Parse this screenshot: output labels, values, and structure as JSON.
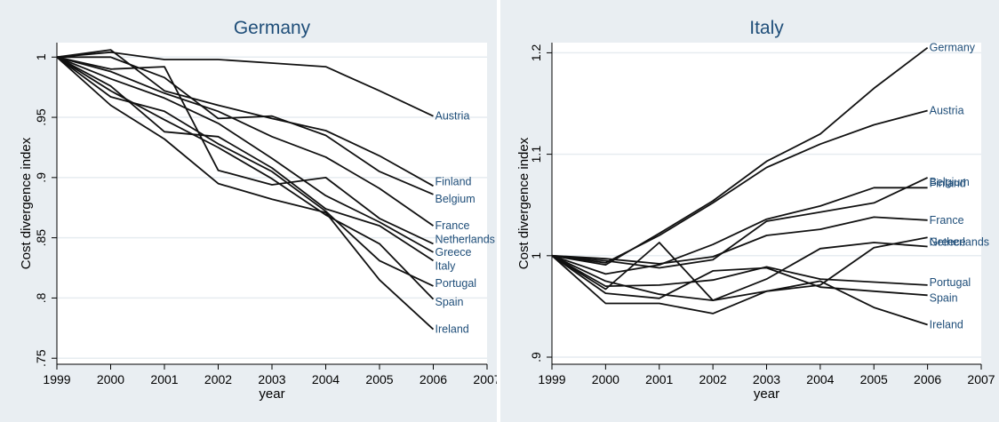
{
  "chart_data": [
    {
      "type": "line",
      "title": "Germany",
      "xlabel": "year",
      "ylabel": "Cost divergence index",
      "x": [
        1999,
        2000,
        2001,
        2002,
        2003,
        2004,
        2005,
        2006
      ],
      "xticks": [
        "1999",
        "2000",
        "2001",
        "2002",
        "2003",
        "2004",
        "2005",
        "2006",
        "2007"
      ],
      "xlim": [
        1999,
        2007
      ],
      "yticks": [
        ".75",
        ".8",
        ".85",
        ".9",
        ".95",
        "1"
      ],
      "ylim": [
        0.745,
        1.012
      ],
      "grid": true,
      "legend": "none",
      "series": [
        {
          "name": "Austria",
          "values": [
            1.0,
            1.004,
            0.998,
            0.998,
            0.995,
            0.992,
            0.972,
            0.951
          ]
        },
        {
          "name": "Finland",
          "values": [
            1.0,
            1.006,
            0.972,
            0.96,
            0.949,
            0.939,
            0.918,
            0.893
          ]
        },
        {
          "name": "Belgium",
          "values": [
            1.0,
            1.0,
            0.983,
            0.949,
            0.951,
            0.935,
            0.905,
            0.886
          ]
        },
        {
          "name": "France",
          "values": [
            1.0,
            0.988,
            0.97,
            0.955,
            0.934,
            0.917,
            0.891,
            0.86
          ]
        },
        {
          "name": "Netherlands",
          "values": [
            1.0,
            0.99,
            0.992,
            0.906,
            0.894,
            0.9,
            0.866,
            0.845
          ]
        },
        {
          "name": "Greece",
          "values": [
            1.0,
            0.982,
            0.966,
            0.945,
            0.916,
            0.885,
            0.863,
            0.838
          ]
        },
        {
          "name": "Italy",
          "values": [
            1.0,
            0.976,
            0.938,
            0.934,
            0.908,
            0.874,
            0.86,
            0.831
          ]
        },
        {
          "name": "Portugal",
          "values": [
            1.0,
            0.967,
            0.955,
            0.928,
            0.905,
            0.872,
            0.831,
            0.81
          ]
        },
        {
          "name": "Spain",
          "values": [
            1.0,
            0.972,
            0.948,
            0.925,
            0.899,
            0.869,
            0.845,
            0.799
          ]
        },
        {
          "name": "Ireland",
          "values": [
            1.0,
            0.96,
            0.932,
            0.895,
            0.882,
            0.871,
            0.815,
            0.774
          ]
        }
      ]
    },
    {
      "type": "line",
      "title": "Italy",
      "xlabel": "year",
      "ylabel": "Cost divergence index",
      "x": [
        1999,
        2000,
        2001,
        2002,
        2003,
        2004,
        2005,
        2006
      ],
      "xticks": [
        "1999",
        "2000",
        "2001",
        "2002",
        "2003",
        "2004",
        "2005",
        "2006",
        "2007"
      ],
      "xlim": [
        1999,
        2007
      ],
      "yticks": [
        ".9",
        "1",
        "1.1",
        "1.2"
      ],
      "ylim": [
        0.893,
        1.21
      ],
      "grid": true,
      "legend": "none",
      "series": [
        {
          "name": "Germany",
          "values": [
            1.0,
            0.991,
            1.022,
            1.054,
            1.093,
            1.12,
            1.165,
            1.205
          ]
        },
        {
          "name": "Austria",
          "values": [
            1.0,
            0.993,
            1.02,
            1.052,
            1.087,
            1.11,
            1.129,
            1.143
          ]
        },
        {
          "name": "Finland",
          "values": [
            1.0,
            0.982,
            0.991,
            1.011,
            1.036,
            1.049,
            1.067,
            1.067
          ]
        },
        {
          "name": "Belgium",
          "values": [
            1.0,
            0.995,
            0.988,
            0.996,
            1.034,
            1.043,
            1.052,
            1.077
          ]
        },
        {
          "name": "France",
          "values": [
            1.0,
            0.997,
            0.992,
            0.999,
            1.02,
            1.026,
            1.038,
            1.035
          ]
        },
        {
          "name": "Netherlands",
          "values": [
            1.0,
            0.967,
            1.013,
            0.956,
            0.977,
            1.007,
            1.013,
            1.009
          ]
        },
        {
          "name": "Greece",
          "values": [
            1.0,
            0.975,
            0.962,
            0.956,
            0.965,
            0.971,
            1.008,
            1.018
          ]
        },
        {
          "name": "Portugal",
          "values": [
            1.0,
            0.97,
            0.971,
            0.976,
            0.989,
            0.977,
            0.974,
            0.971
          ]
        },
        {
          "name": "Spain",
          "values": [
            1.0,
            0.963,
            0.958,
            0.985,
            0.988,
            0.969,
            0.965,
            0.961
          ]
        },
        {
          "name": "Ireland",
          "values": [
            1.0,
            0.953,
            0.953,
            0.943,
            0.965,
            0.975,
            0.949,
            0.932
          ]
        }
      ]
    }
  ]
}
